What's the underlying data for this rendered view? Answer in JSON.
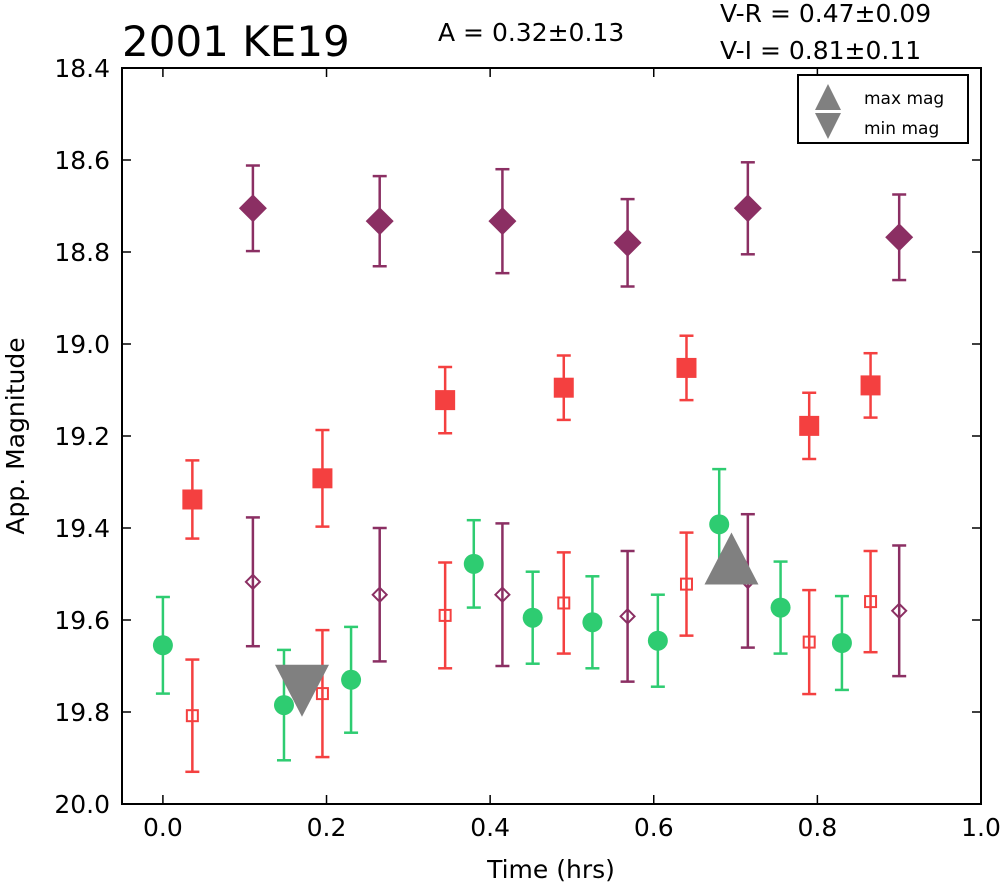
{
  "chart_data": {
    "type": "scatter",
    "title": "2001 KE19",
    "amplitude_text": "A  = 0.32±0.13",
    "color_indices": [
      "V-R = 0.47±0.09",
      "V-I  = 0.81±0.11"
    ],
    "xlabel": "Time (hrs)",
    "ylabel": "App. Magnitude",
    "xlim": [
      -0.05,
      1.0
    ],
    "ylim": [
      20.0,
      18.4
    ],
    "y_inverted": true,
    "x_ticks": [
      "0.0",
      "0.2",
      "0.4",
      "0.6",
      "0.8",
      "1.0"
    ],
    "y_ticks": [
      "18.4",
      "18.6",
      "18.8",
      "19.0",
      "19.2",
      "19.4",
      "19.6",
      "19.8",
      "20.0"
    ],
    "grid": false,
    "legend": {
      "placement": "top-right",
      "entries": [
        {
          "label": "max mag",
          "marker": "triangle-up",
          "color": "#808080"
        },
        {
          "label": "min mag",
          "marker": "triangle-down",
          "color": "#808080"
        }
      ]
    },
    "colors": {
      "green": "#2ecc71",
      "red": "#f44040",
      "purple": "#8b2f63",
      "gray": "#808080"
    },
    "series": [
      {
        "marker": "circle",
        "color": "#2ecc71",
        "filled": true,
        "points": [
          {
            "x": 0.0,
            "y": 19.655,
            "err": 0.105
          },
          {
            "x": 0.148,
            "y": 19.785,
            "err": 0.12
          },
          {
            "x": 0.23,
            "y": 19.73,
            "err": 0.115
          },
          {
            "x": 0.38,
            "y": 19.478,
            "err": 0.095
          },
          {
            "x": 0.452,
            "y": 19.595,
            "err": 0.1
          },
          {
            "x": 0.525,
            "y": 19.605,
            "err": 0.1
          },
          {
            "x": 0.605,
            "y": 19.645,
            "err": 0.1
          },
          {
            "x": 0.68,
            "y": 19.392,
            "err": 0.12
          },
          {
            "x": 0.755,
            "y": 19.573,
            "err": 0.1
          },
          {
            "x": 0.83,
            "y": 19.65,
            "err": 0.102
          }
        ]
      },
      {
        "marker": "square",
        "color": "#f44040",
        "filled": true,
        "points": [
          {
            "x": 0.036,
            "y": 19.338,
            "err": 0.085
          },
          {
            "x": 0.195,
            "y": 19.292,
            "err": 0.105
          },
          {
            "x": 0.345,
            "y": 19.122,
            "err": 0.072
          },
          {
            "x": 0.49,
            "y": 19.095,
            "err": 0.07
          },
          {
            "x": 0.64,
            "y": 19.052,
            "err": 0.07
          },
          {
            "x": 0.79,
            "y": 19.178,
            "err": 0.072
          },
          {
            "x": 0.865,
            "y": 19.09,
            "err": 0.07
          }
        ]
      },
      {
        "marker": "square",
        "color": "#f44040",
        "filled": false,
        "points": [
          {
            "x": 0.036,
            "y": 19.808,
            "err": 0.122
          },
          {
            "x": 0.195,
            "y": 19.76,
            "err": 0.138
          },
          {
            "x": 0.345,
            "y": 19.59,
            "err": 0.115
          },
          {
            "x": 0.49,
            "y": 19.563,
            "err": 0.11
          },
          {
            "x": 0.64,
            "y": 19.522,
            "err": 0.112
          },
          {
            "x": 0.79,
            "y": 19.648,
            "err": 0.113
          },
          {
            "x": 0.865,
            "y": 19.56,
            "err": 0.11
          }
        ]
      },
      {
        "marker": "diamond",
        "color": "#8b2f63",
        "filled": true,
        "points": [
          {
            "x": 0.11,
            "y": 18.705,
            "err": 0.093
          },
          {
            "x": 0.265,
            "y": 18.733,
            "err": 0.098
          },
          {
            "x": 0.415,
            "y": 18.733,
            "err": 0.113
          },
          {
            "x": 0.568,
            "y": 18.78,
            "err": 0.095
          },
          {
            "x": 0.715,
            "y": 18.705,
            "err": 0.1
          },
          {
            "x": 0.9,
            "y": 18.768,
            "err": 0.093
          }
        ]
      },
      {
        "marker": "diamond",
        "color": "#8b2f63",
        "filled": false,
        "points": [
          {
            "x": 0.11,
            "y": 19.517,
            "err": 0.14
          },
          {
            "x": 0.265,
            "y": 19.545,
            "err": 0.145
          },
          {
            "x": 0.415,
            "y": 19.545,
            "err": 0.155
          },
          {
            "x": 0.568,
            "y": 19.592,
            "err": 0.142
          },
          {
            "x": 0.715,
            "y": 19.515,
            "err": 0.145
          },
          {
            "x": 0.9,
            "y": 19.58,
            "err": 0.142
          }
        ]
      }
    ],
    "extrema": [
      {
        "type": "min",
        "x": 0.17,
        "y": 19.745,
        "marker": "triangle-down",
        "color": "#808080"
      },
      {
        "type": "max",
        "x": 0.695,
        "y": 19.475,
        "marker": "triangle-up",
        "color": "#808080"
      }
    ]
  }
}
